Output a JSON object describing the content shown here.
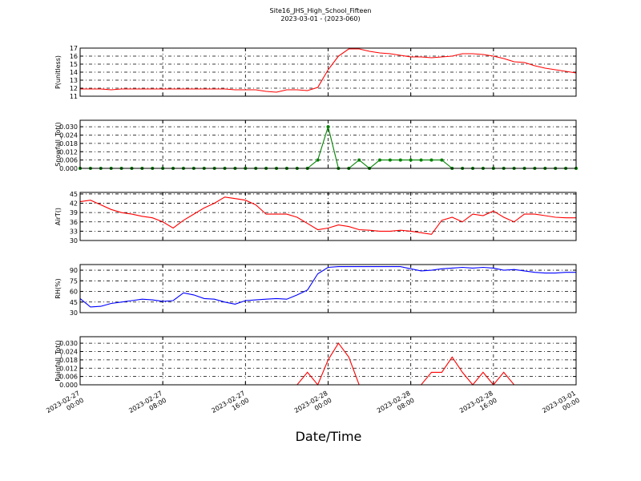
{
  "chart_data": {
    "type": "line",
    "title": "Site16_JHS_High_School_Fifteen",
    "subtitle": "2023-03-01 - (2023-060)",
    "xlabel": "Date/Time",
    "grid": true,
    "x": [
      "2023-02-27 00:00",
      "2023-02-27 01:00",
      "2023-02-27 02:00",
      "2023-02-27 03:00",
      "2023-02-27 04:00",
      "2023-02-27 05:00",
      "2023-02-27 06:00",
      "2023-02-27 07:00",
      "2023-02-27 08:00",
      "2023-02-27 09:00",
      "2023-02-27 10:00",
      "2023-02-27 11:00",
      "2023-02-27 12:00",
      "2023-02-27 13:00",
      "2023-02-27 14:00",
      "2023-02-27 15:00",
      "2023-02-27 16:00",
      "2023-02-27 17:00",
      "2023-02-27 18:00",
      "2023-02-27 19:00",
      "2023-02-27 20:00",
      "2023-02-27 21:00",
      "2023-02-27 22:00",
      "2023-02-27 23:00",
      "2023-02-28 00:00",
      "2023-02-28 01:00",
      "2023-02-28 02:00",
      "2023-02-28 03:00",
      "2023-02-28 04:00",
      "2023-02-28 05:00",
      "2023-02-28 06:00",
      "2023-02-28 07:00",
      "2023-02-28 08:00",
      "2023-02-28 09:00",
      "2023-02-28 10:00",
      "2023-02-28 11:00",
      "2023-02-28 12:00",
      "2023-02-28 13:00",
      "2023-02-28 14:00",
      "2023-02-28 15:00",
      "2023-02-28 16:00",
      "2023-02-28 17:00",
      "2023-02-28 18:00",
      "2023-02-28 19:00",
      "2023-02-28 20:00",
      "2023-02-28 21:00",
      "2023-02-28 22:00",
      "2023-02-28 23:00",
      "2023-03-01 00:00"
    ],
    "xlim": [
      "2023-02-27 00:00",
      "2023-03-01 00:00"
    ],
    "xticks": [
      "2023-02-27 00:00",
      "2023-02-27 08:00",
      "2023-02-27 16:00",
      "2023-02-28 00:00",
      "2023-02-28 08:00",
      "2023-02-28 16:00",
      "2023-03-01 00:00"
    ],
    "panels": [
      {
        "ylabel": "P(unitless)",
        "color": "#ff0000",
        "ylim": [
          11,
          17
        ],
        "yticks": [
          11,
          12,
          13,
          14,
          15,
          16,
          17
        ],
        "values": [
          11.9,
          11.9,
          11.9,
          11.8,
          11.9,
          11.9,
          11.9,
          11.9,
          11.9,
          11.9,
          11.9,
          11.9,
          11.9,
          11.9,
          11.9,
          11.8,
          11.8,
          11.8,
          11.6,
          11.5,
          11.8,
          11.8,
          11.7,
          12.1,
          14.3,
          16.0,
          16.9,
          16.9,
          16.6,
          16.4,
          16.3,
          16.1,
          15.9,
          15.9,
          15.8,
          15.9,
          16.0,
          16.3,
          16.3,
          16.2,
          16.0,
          15.7,
          15.3,
          15.2,
          14.8,
          14.5,
          14.3,
          14.1,
          13.9
        ]
      },
      {
        "ylabel": "Snowfall_Tot()",
        "color": "#008000",
        "marker": true,
        "ylim": [
          0,
          0.0347
        ],
        "yticks": [
          {
            "value": 0,
            "label": "0.000"
          },
          {
            "value": 0.006,
            "label": "0.006"
          },
          {
            "value": 0.012,
            "label": "0.012"
          },
          {
            "value": 0.018,
            "label": "0.018"
          },
          {
            "value": 0.024,
            "label": "0.024"
          },
          {
            "value": 0.03,
            "label": "0.030"
          }
        ],
        "values": [
          0,
          0,
          0,
          0,
          0,
          0,
          0,
          0,
          0,
          0,
          0,
          0,
          0,
          0,
          0,
          0,
          0,
          0,
          0,
          0,
          0,
          0,
          0,
          0.006,
          0.03,
          0,
          0,
          0.006,
          0,
          0.006,
          0.006,
          0.006,
          0.006,
          0.006,
          0.006,
          0.006,
          0,
          0,
          0,
          0,
          0,
          0,
          0,
          0,
          0,
          0,
          0,
          0,
          0
        ]
      },
      {
        "ylabel": "AirT()",
        "color": "#ff0000",
        "ylim": [
          30,
          45.5
        ],
        "yticks": [
          30,
          33,
          36,
          39,
          42,
          45
        ],
        "values": [
          42.5,
          43,
          41.5,
          40,
          39,
          38.5,
          37.8,
          37.3,
          36,
          34,
          36.5,
          38.5,
          40.5,
          42,
          44,
          43.5,
          43,
          41.5,
          38.5,
          38.5,
          38.5,
          37.5,
          35.5,
          33.5,
          34,
          35,
          34.5,
          33.5,
          33.3,
          33,
          33,
          33.3,
          33,
          32.5,
          32,
          36.5,
          37.5,
          36,
          38.5,
          38,
          39.5,
          37.5,
          36,
          38.5,
          38.5,
          38,
          37.5,
          37.3,
          37.3
        ]
      },
      {
        "ylabel": "RH(%)",
        "color": "#0000ff",
        "ylim": [
          30,
          98
        ],
        "yticks": [
          30,
          45,
          60,
          75,
          90
        ],
        "values": [
          50,
          38,
          39,
          43,
          45,
          47,
          49,
          48,
          46,
          47,
          58,
          55,
          50,
          49,
          45,
          42,
          47,
          48,
          49,
          50,
          49,
          55,
          62,
          85,
          94,
          95,
          95,
          95,
          95,
          95,
          95,
          95,
          92,
          89,
          90,
          92,
          93,
          94,
          93,
          94,
          93,
          90,
          91,
          89,
          87,
          86,
          86,
          87,
          87
        ]
      },
      {
        "ylabel": "Rainfall_Tot()",
        "color": "#ff0000",
        "ylim": [
          0,
          0.0347
        ],
        "yticks": [
          {
            "value": 0,
            "label": "0.000"
          },
          {
            "value": 0.006,
            "label": "0.006"
          },
          {
            "value": 0.012,
            "label": "0.012"
          },
          {
            "value": 0.018,
            "label": "0.018"
          },
          {
            "value": 0.024,
            "label": "0.024"
          },
          {
            "value": 0.03,
            "label": "0.030"
          }
        ],
        "values": [
          0,
          0,
          0,
          0,
          0,
          0,
          0,
          0,
          0,
          0,
          0,
          0,
          0,
          0,
          0,
          0,
          0,
          0,
          0,
          0,
          0,
          0,
          0.009,
          0,
          0.018,
          0.03,
          0.02,
          0,
          0,
          0,
          0,
          0,
          0,
          0,
          0.009,
          0.009,
          0.02,
          0.009,
          0,
          0.009,
          0,
          0.009,
          0,
          0,
          0,
          0,
          0,
          0,
          0
        ]
      }
    ]
  }
}
